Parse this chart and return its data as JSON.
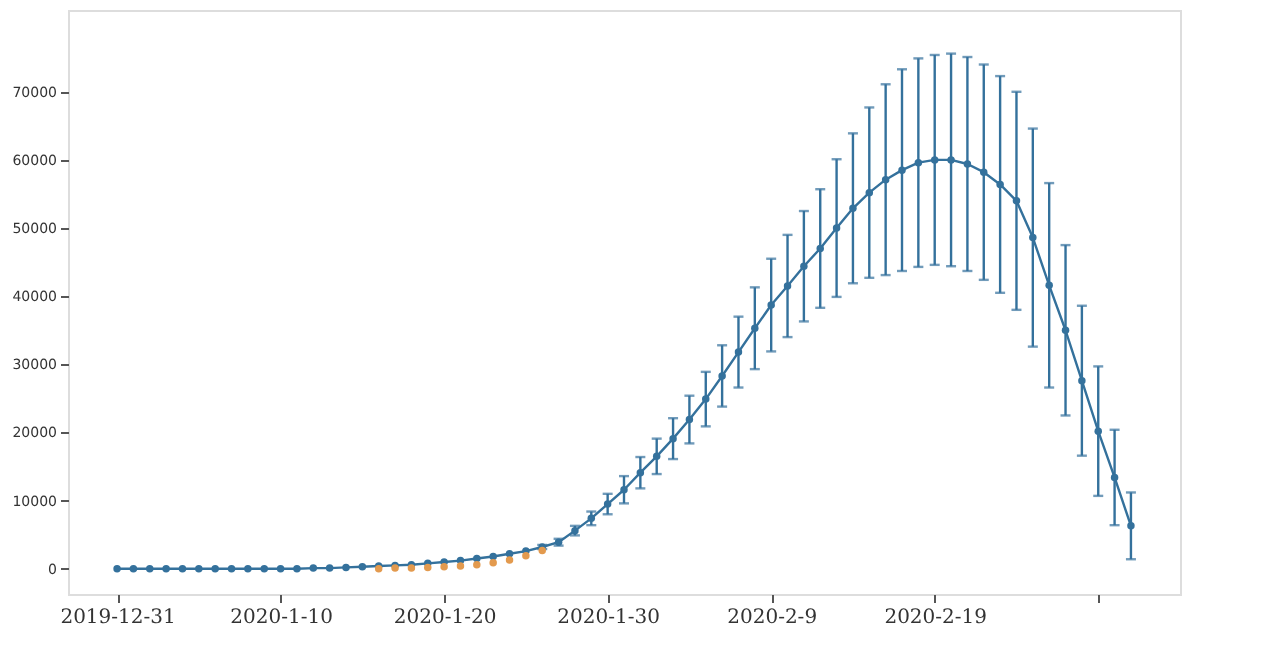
{
  "chart_data": {
    "type": "line",
    "x": [
      "2019-12-31",
      "2020-01-01",
      "2020-01-02",
      "2020-01-03",
      "2020-01-04",
      "2020-01-05",
      "2020-01-06",
      "2020-01-07",
      "2020-01-08",
      "2020-01-09",
      "2020-01-10",
      "2020-01-11",
      "2020-01-12",
      "2020-01-13",
      "2020-01-14",
      "2020-01-15",
      "2020-01-16",
      "2020-01-17",
      "2020-01-18",
      "2020-01-19",
      "2020-01-20",
      "2020-01-21",
      "2020-01-22",
      "2020-01-23",
      "2020-01-24",
      "2020-01-25",
      "2020-01-26",
      "2020-01-27",
      "2020-01-28",
      "2020-01-29",
      "2020-01-30",
      "2020-01-31",
      "2020-02-01",
      "2020-02-02",
      "2020-02-03",
      "2020-02-04",
      "2020-02-05",
      "2020-02-06",
      "2020-02-07",
      "2020-02-08",
      "2020-02-09",
      "2020-02-10",
      "2020-02-11",
      "2020-02-12",
      "2020-02-13",
      "2020-02-14",
      "2020-02-15",
      "2020-02-16",
      "2020-02-17",
      "2020-02-18",
      "2020-02-19",
      "2020-02-20",
      "2020-02-21",
      "2020-02-22",
      "2020-02-23",
      "2020-02-24",
      "2020-02-25",
      "2020-02-26",
      "2020-02-27",
      "2020-02-28",
      "2020-02-29",
      "2020-03-01",
      "2020-03-02"
    ],
    "series": [
      {
        "color": "#34719c",
        "marker": "circle",
        "line_style": "solid",
        "values": [
          0,
          0,
          0,
          0,
          0,
          0,
          0,
          0,
          0,
          0,
          0,
          0,
          100,
          100,
          200,
          300,
          400,
          500,
          600,
          800,
          1000,
          1200,
          1500,
          1800,
          2200,
          2600,
          3200,
          3900,
          5600,
          7400,
          9500,
          11600,
          14100,
          16500,
          19100,
          21900,
          24900,
          28300,
          31800,
          35300,
          38700,
          41500,
          44400,
          47000,
          50000,
          52900,
          55200,
          57100,
          58500,
          59600,
          60000,
          60000,
          59400,
          58200,
          56400,
          54000,
          48600,
          41600,
          35000,
          27600,
          20200,
          13400,
          6300
        ],
        "errors": [
          null,
          null,
          null,
          null,
          null,
          null,
          null,
          null,
          null,
          null,
          null,
          null,
          null,
          null,
          null,
          null,
          null,
          null,
          null,
          null,
          null,
          null,
          null,
          null,
          null,
          null,
          300,
          500,
          700,
          1000,
          1500,
          2000,
          2300,
          2600,
          3000,
          3500,
          4000,
          4500,
          5200,
          6000,
          6800,
          7500,
          8100,
          8700,
          10100,
          11000,
          12500,
          14000,
          14800,
          15300,
          15400,
          15600,
          15700,
          15800,
          15900,
          16000,
          16000,
          15000,
          12500,
          11000,
          9500,
          7000,
          4900
        ]
      },
      {
        "type": "scatter",
        "color": "#e39a4e",
        "marker": "circle",
        "x": [
          "2020-01-16",
          "2020-01-17",
          "2020-01-18",
          "2020-01-19",
          "2020-01-20",
          "2020-01-21",
          "2020-01-22",
          "2020-01-23",
          "2020-01-24",
          "2020-01-25",
          "2020-01-26"
        ],
        "values": [
          0,
          100,
          100,
          200,
          300,
          400,
          600,
          900,
          1300,
          1900,
          2700
        ]
      }
    ],
    "xlim": [
      "2019-12-28",
      "2020-03-05"
    ],
    "xticks": [
      {
        "value": "2019-12-31",
        "label": "2019-12-31"
      },
      {
        "value": "2020-01-10",
        "label": "2020-1-10"
      },
      {
        "value": "2020-01-20",
        "label": "2020-1-20"
      },
      {
        "value": "2020-01-30",
        "label": "2020-1-30"
      },
      {
        "value": "2020-02-09",
        "label": "2020-2-9"
      },
      {
        "value": "2020-02-19",
        "label": "2020-2-19"
      },
      {
        "value": "2020-02-29",
        "label": null
      }
    ],
    "ylim": [
      -3700,
      82000
    ],
    "yticks": [
      0,
      10000,
      20000,
      30000,
      40000,
      50000,
      60000,
      70000
    ],
    "grid": false,
    "legend": false
  }
}
